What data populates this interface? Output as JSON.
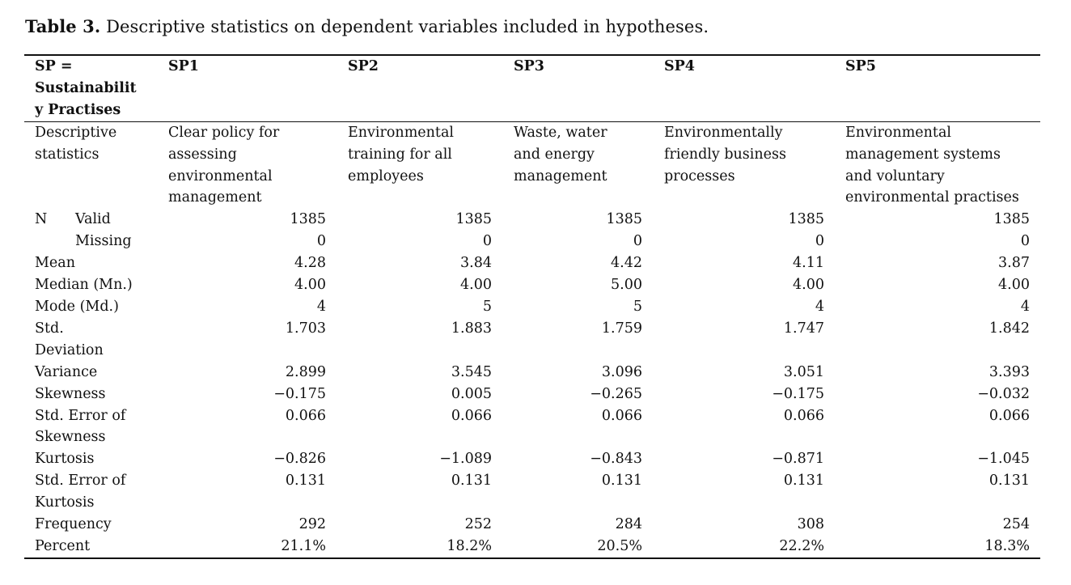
{
  "title": {
    "label": "Table 3.",
    "text": "Descriptive statistics on dependent variables included in hypotheses."
  },
  "table": {
    "header": [
      "SP = Sustainability Practises",
      "SP1",
      "SP2",
      "SP3",
      "SP4",
      "SP5"
    ],
    "descriptions": [
      "Descriptive statistics",
      "Clear policy for assessing environmental management",
      "Environmental training for all employees",
      "Waste, water and energy management",
      "Environmentally friendly business processes",
      "Environmental management systems and voluntary environmental practises"
    ],
    "rows": [
      {
        "label": "N",
        "sublabel": "Valid",
        "values": [
          "1385",
          "1385",
          "1385",
          "1385",
          "1385"
        ]
      },
      {
        "sublabel": "Missing",
        "values": [
          "0",
          "0",
          "0",
          "0",
          "0"
        ]
      },
      {
        "label": "Mean",
        "values": [
          "4.28",
          "3.84",
          "4.42",
          "4.11",
          "3.87"
        ]
      },
      {
        "label": "Median (Mn.)",
        "values": [
          "4.00",
          "4.00",
          "5.00",
          "4.00",
          "4.00"
        ]
      },
      {
        "label": "Mode (Md.)",
        "values": [
          "4",
          "5",
          "5",
          "4",
          "4"
        ]
      },
      {
        "label": "Std. Deviation",
        "values": [
          "1.703",
          "1.883",
          "1.759",
          "1.747",
          "1.842"
        ]
      },
      {
        "label": "Variance",
        "values": [
          "2.899",
          "3.545",
          "3.096",
          "3.051",
          "3.393"
        ]
      },
      {
        "label": "Skewness",
        "values": [
          "−0.175",
          "0.005",
          "−0.265",
          "−0.175",
          "−0.032"
        ]
      },
      {
        "label": "Std. Error of Skewness",
        "values": [
          "0.066",
          "0.066",
          "0.066",
          "0.066",
          "0.066"
        ]
      },
      {
        "label": "Kurtosis",
        "values": [
          "−0.826",
          "−1.089",
          "−0.843",
          "−0.871",
          "−1.045"
        ]
      },
      {
        "label": "Std. Error of Kurtosis",
        "values": [
          "0.131",
          "0.131",
          "0.131",
          "0.131",
          "0.131"
        ]
      },
      {
        "label": "Frequency",
        "values": [
          "292",
          "252",
          "284",
          "308",
          "254"
        ]
      },
      {
        "label": "Percent",
        "values": [
          "21.1%",
          "18.2%",
          "20.5%",
          "22.2%",
          "18.3%"
        ]
      }
    ]
  }
}
